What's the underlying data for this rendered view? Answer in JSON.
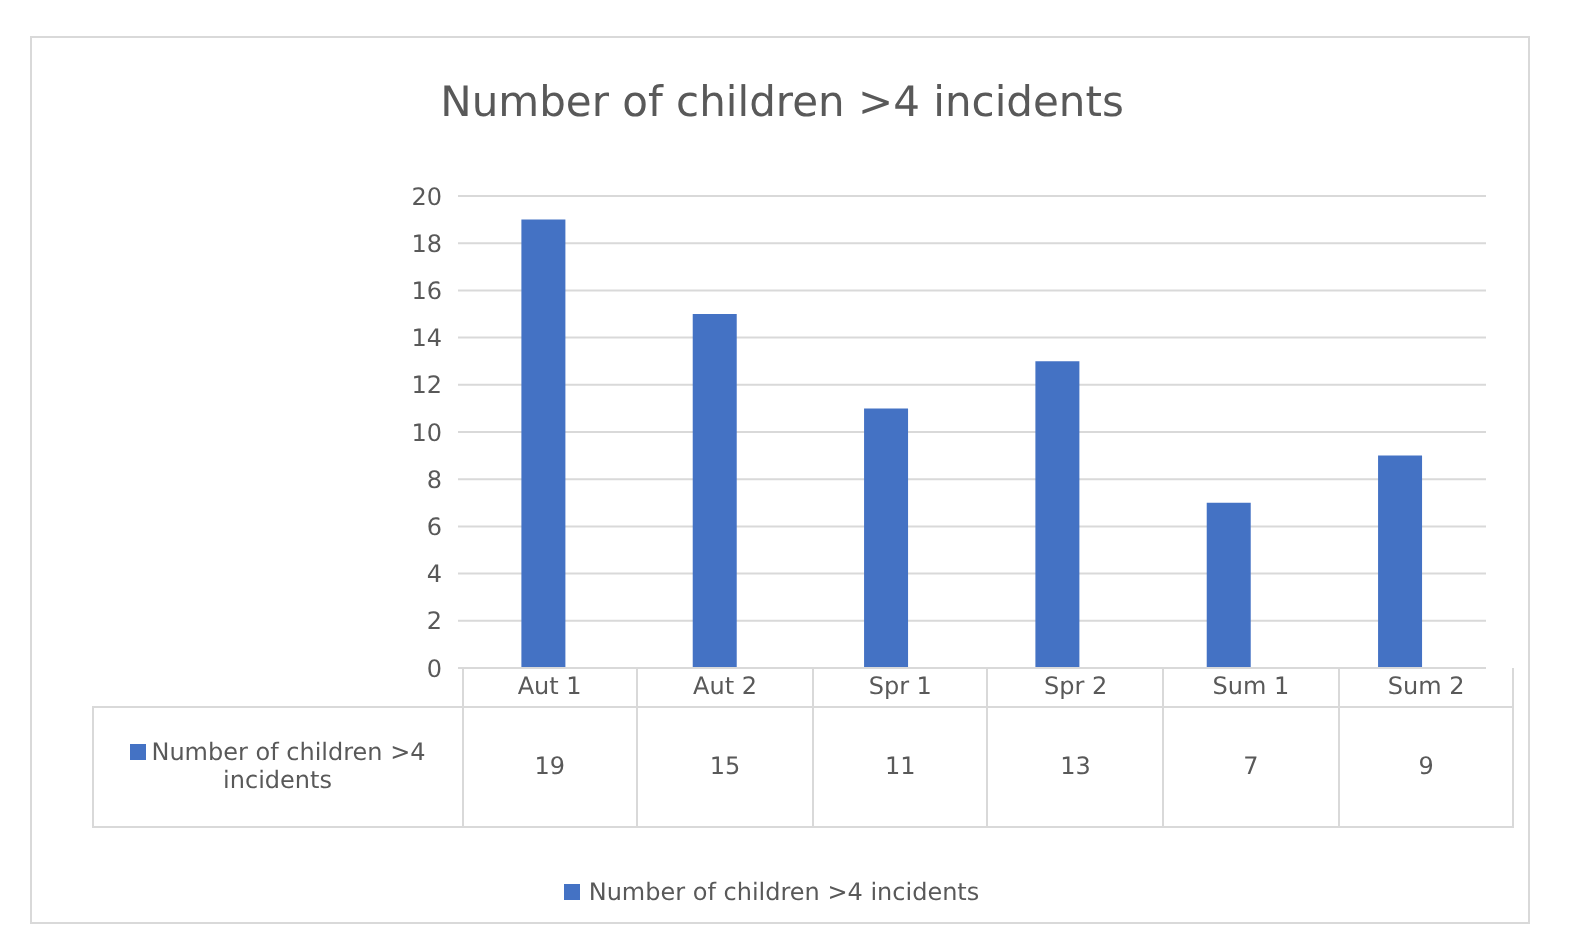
{
  "chart_data": {
    "type": "bar",
    "title": "Number of children >4 incidents",
    "categories": [
      "Aut 1",
      "Aut 2",
      "Spr 1",
      "Spr 2",
      "Sum 1",
      "Sum 2"
    ],
    "series": [
      {
        "name": "Number of children >4 incidents",
        "color": "#4472c4",
        "values": [
          19,
          15,
          11,
          13,
          7,
          9
        ]
      }
    ],
    "ylim": [
      0,
      20
    ],
    "yticks": [
      0,
      2,
      4,
      6,
      8,
      10,
      12,
      14,
      16,
      18,
      20
    ],
    "grid": "y",
    "legend": "bottom",
    "data_labels": true
  }
}
